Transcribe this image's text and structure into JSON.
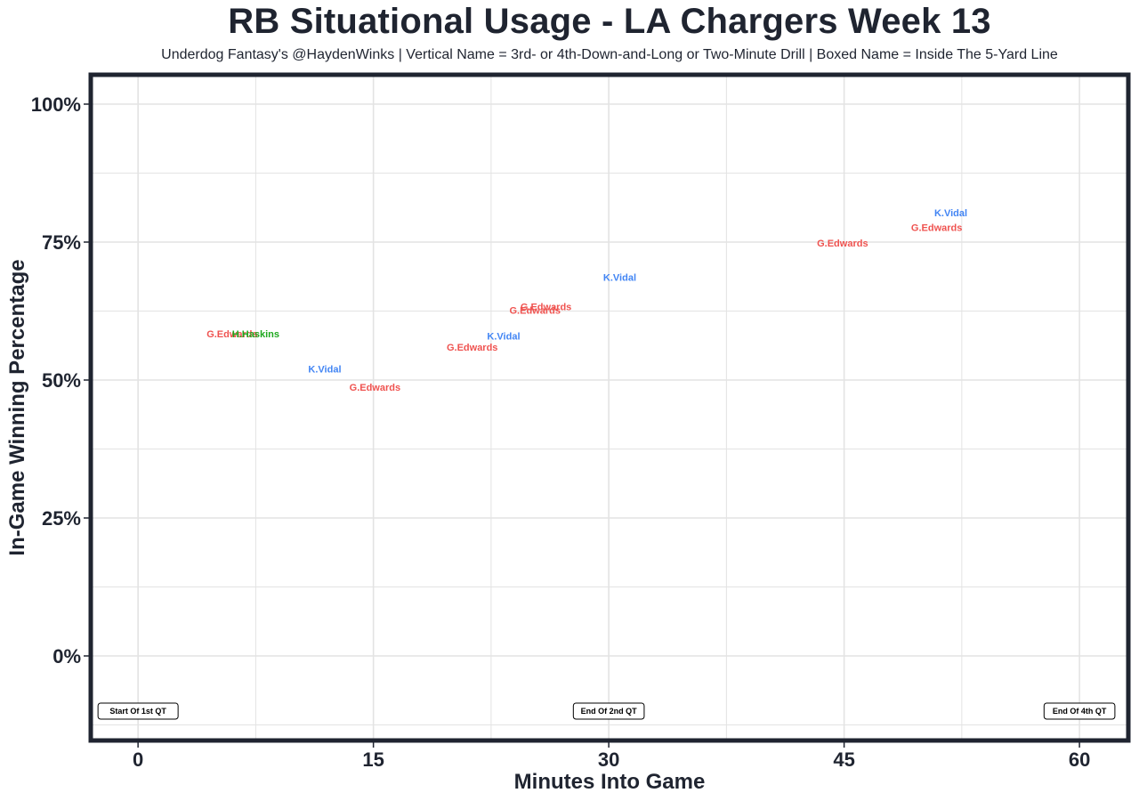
{
  "chart_data": {
    "type": "scatter",
    "title": "RB Situational Usage - LA Chargers Week 13",
    "subtitle": "Underdog Fantasy's @HaydenWinks | Vertical Name = 3rd- or 4th-Down-and-Long or Two-Minute Drill | Boxed Name = Inside The 5-Yard Line",
    "xlabel": "Minutes Into Game",
    "ylabel": "In-Game Winning Percentage",
    "xlim": [
      -2.9,
      63
    ],
    "ylim": [
      -15,
      105
    ],
    "x_ticks": [
      0,
      15,
      30,
      45,
      60
    ],
    "x_tick_labels": [
      "0",
      "15",
      "30",
      "45",
      "60"
    ],
    "y_ticks": [
      0,
      25,
      50,
      75,
      100
    ],
    "y_tick_labels": [
      "0%",
      "25%",
      "50%",
      "75%",
      "100%"
    ],
    "grid": true,
    "points": [
      {
        "x": 6.0,
        "y": 58.4,
        "label": "G.Edwards",
        "color": "#ef5350"
      },
      {
        "x": 7.5,
        "y": 58.4,
        "label": "H.Haskins",
        "color": "#1ea81e"
      },
      {
        "x": 11.9,
        "y": 52.0,
        "label": "K.Vidal",
        "color": "#4285f4"
      },
      {
        "x": 15.1,
        "y": 48.7,
        "label": "G.Edwards",
        "color": "#ef5350"
      },
      {
        "x": 21.3,
        "y": 56.0,
        "label": "G.Edwards",
        "color": "#ef5350"
      },
      {
        "x": 23.3,
        "y": 58.0,
        "label": "K.Vidal",
        "color": "#4285f4"
      },
      {
        "x": 25.3,
        "y": 62.7,
        "label": "G.Edwards",
        "color": "#ef5350"
      },
      {
        "x": 26.0,
        "y": 63.3,
        "label": "G.Edwards",
        "color": "#ef5350"
      },
      {
        "x": 30.7,
        "y": 68.6,
        "label": "K.Vidal",
        "color": "#4285f4"
      },
      {
        "x": 44.9,
        "y": 74.8,
        "label": "G.Edwards",
        "color": "#ef5350"
      },
      {
        "x": 50.9,
        "y": 77.7,
        "label": "G.Edwards",
        "color": "#ef5350"
      },
      {
        "x": 51.8,
        "y": 80.3,
        "label": "K.Vidal",
        "color": "#4285f4"
      }
    ],
    "annotations": [
      {
        "x": 0,
        "y": -10,
        "label": "Start Of 1st QT"
      },
      {
        "x": 30,
        "y": -10,
        "label": "End Of 2nd QT"
      },
      {
        "x": 60,
        "y": -10,
        "label": "End Of 4th QT"
      }
    ]
  },
  "colors": {
    "frame": "#1f2430",
    "grid": "#e3e3e3",
    "text": "#1f2430"
  }
}
